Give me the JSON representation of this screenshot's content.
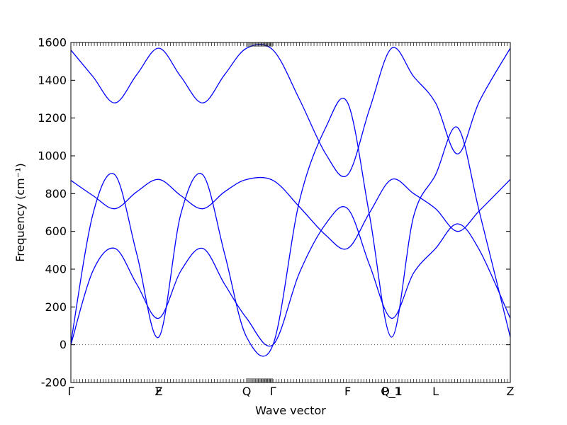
{
  "chart_data": {
    "type": "line",
    "title": "",
    "xlabel": "Wave vector",
    "ylabel": "Frequency (cm⁻¹)",
    "ylim": [
      -200,
      1600
    ],
    "yticks": [
      -200,
      0,
      200,
      400,
      600,
      800,
      1000,
      1200,
      1400,
      1600
    ],
    "xlim": [
      0,
      5.0
    ],
    "xtick_positions": [
      0,
      1.0,
      2.0,
      2.3,
      3.15,
      3.65,
      4.15,
      5.0
    ],
    "xtick_labels": [
      "Γ",
      "Z",
      "Q",
      "Γ",
      "F",
      "P_1",
      "L",
      "Z"
    ],
    "xtick_overlay_labels": [
      {
        "x": 1.0,
        "label": "F"
      },
      {
        "x": 3.65,
        "label": "Q_1"
      }
    ],
    "zero_line": true,
    "grid": false,
    "series": [
      {
        "x": [
          0.0,
          0.25,
          0.5,
          0.75,
          1.0,
          1.25,
          1.5,
          1.75,
          2.0,
          2.3,
          2.6,
          2.9,
          3.15,
          3.4,
          3.65,
          3.9,
          4.15,
          4.4,
          4.65,
          5.0
        ],
        "values": [
          0,
          390,
          510,
          320,
          140,
          390,
          510,
          320,
          140,
          0,
          380,
          640,
          720,
          420,
          140,
          380,
          510,
          640,
          500,
          140
        ]
      },
      {
        "x": [
          0.0,
          0.25,
          0.5,
          0.75,
          1.0,
          1.25,
          1.5,
          1.75,
          2.0,
          2.3,
          2.6,
          2.9,
          3.15,
          3.4,
          3.65,
          3.9,
          4.15,
          4.4,
          4.65,
          5.0
        ],
        "values": [
          10,
          690,
          900,
          480,
          40,
          690,
          900,
          480,
          40,
          0,
          760,
          1150,
          1280,
          680,
          40,
          680,
          900,
          1150,
          700,
          40
        ]
      },
      {
        "x": [
          0.0,
          0.25,
          0.5,
          0.75,
          1.0,
          1.25,
          1.5,
          1.75,
          2.0,
          2.3,
          2.6,
          2.9,
          3.15,
          3.4,
          3.65,
          3.9,
          4.15,
          4.4,
          4.65,
          5.0
        ],
        "values": [
          870,
          790,
          720,
          810,
          875,
          790,
          720,
          810,
          875,
          870,
          730,
          580,
          510,
          700,
          875,
          800,
          720,
          600,
          710,
          875
        ]
      },
      {
        "x": [
          0.0,
          0.25,
          0.5,
          0.75,
          1.0,
          1.25,
          1.5,
          1.75,
          2.0,
          2.3,
          2.6,
          2.9,
          3.15,
          3.4,
          3.65,
          3.9,
          4.15,
          4.4,
          4.65,
          5.0
        ],
        "values": [
          1560,
          1420,
          1280,
          1430,
          1570,
          1420,
          1280,
          1430,
          1570,
          1560,
          1300,
          1010,
          900,
          1250,
          1570,
          1420,
          1280,
          1010,
          1290,
          1570
        ]
      }
    ]
  }
}
